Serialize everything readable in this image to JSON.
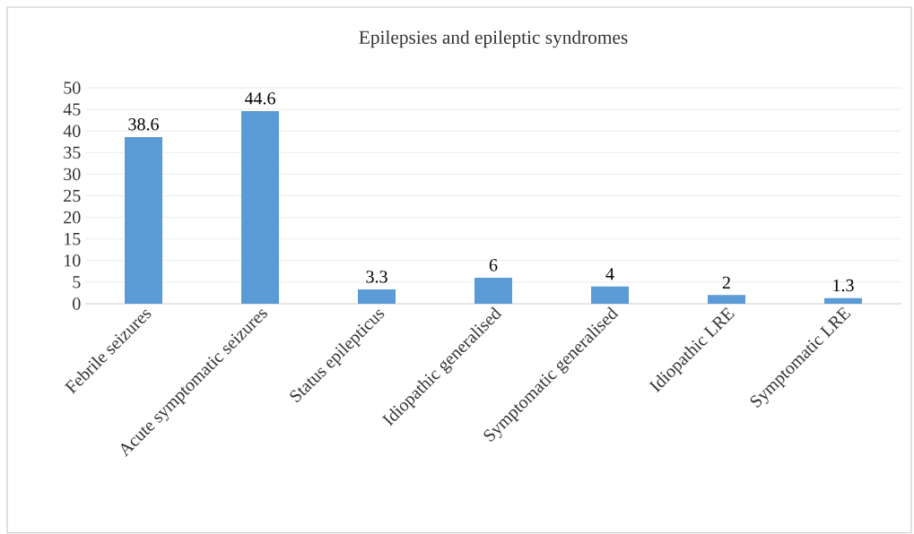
{
  "chart_data": {
    "type": "bar",
    "title": "Epilepsies and epileptic syndromes",
    "categories": [
      "Febrile seizures",
      "Acute symptomatic seizures",
      "Status epilepticus",
      "Idiopathic generalised",
      "Symptomatic generalised",
      "Idiopathic LRE",
      "Symptomatic LRE"
    ],
    "values": [
      38.6,
      44.6,
      3.3,
      6,
      4,
      2,
      1.3
    ],
    "color": "#5b9bd5",
    "ylim": [
      0,
      50
    ],
    "yticks": [
      0,
      5,
      10,
      15,
      20,
      25,
      30,
      35,
      40,
      45,
      50
    ],
    "grid": "y",
    "data_labels": true
  }
}
